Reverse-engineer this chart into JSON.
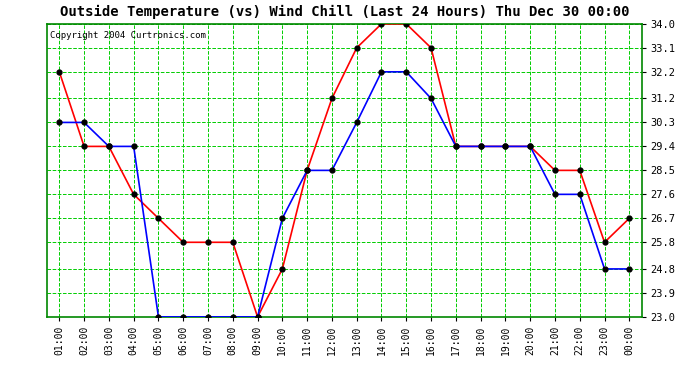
{
  "title": "Outside Temperature (vs) Wind Chill (Last 24 Hours) Thu Dec 30 00:00",
  "copyright": "Copyright 2004 Curtronics.com",
  "x_labels": [
    "01:00",
    "02:00",
    "03:00",
    "04:00",
    "05:00",
    "06:00",
    "07:00",
    "08:00",
    "09:00",
    "10:00",
    "11:00",
    "12:00",
    "13:00",
    "14:00",
    "15:00",
    "16:00",
    "17:00",
    "18:00",
    "19:00",
    "20:00",
    "21:00",
    "22:00",
    "23:00",
    "00:00"
  ],
  "y_ticks": [
    23.0,
    23.9,
    24.8,
    25.8,
    26.7,
    27.6,
    28.5,
    29.4,
    30.3,
    31.2,
    32.2,
    33.1,
    34.0
  ],
  "y_min": 23.0,
  "y_max": 34.0,
  "temp_data": [
    30.3,
    30.3,
    29.4,
    29.4,
    23.0,
    23.0,
    23.0,
    23.0,
    23.0,
    26.7,
    28.5,
    28.5,
    30.3,
    32.2,
    32.2,
    31.2,
    29.4,
    29.4,
    29.4,
    29.4,
    27.6,
    27.6,
    24.8,
    24.8
  ],
  "windchill_data": [
    32.2,
    29.4,
    29.4,
    27.6,
    26.7,
    25.8,
    25.8,
    25.8,
    23.0,
    24.8,
    28.5,
    31.2,
    33.1,
    34.0,
    34.0,
    33.1,
    29.4,
    29.4,
    29.4,
    29.4,
    28.5,
    28.5,
    25.8,
    26.7
  ],
  "temp_color": "#0000ff",
  "windchill_color": "#ff0000",
  "plot_bg": "#ffffff",
  "grid_color": "#00cc00",
  "outer_bg": "#ffffff",
  "border_color": "#008800",
  "title_fontsize": 10,
  "marker_fill": "#000000",
  "marker_edge": "#000000",
  "marker_size": 3.5,
  "line_width": 1.2
}
